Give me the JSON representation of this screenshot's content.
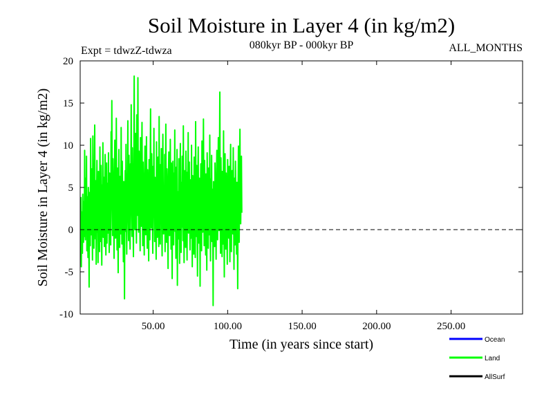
{
  "chart_data": {
    "type": "line",
    "title": "Soil Moisture in Layer 4 (in kg/m2)",
    "subtitle": "080kyr BP - 000kyr BP",
    "experiment": "Expt = tdwzZ-tdwza",
    "season": "ALL_MONTHS",
    "xlabel": "Time (in years since start)",
    "ylabel": "Soil Moisture in Layer 4 (in kg/m2)",
    "xlim": [
      1,
      298
    ],
    "ylim": [
      -10,
      20
    ],
    "x_ticks": [
      50,
      100,
      150,
      200,
      250
    ],
    "x_tick_labels": [
      "50.00",
      "100.00",
      "150.00",
      "200.00",
      "250.00"
    ],
    "y_ticks": [
      -10,
      -5,
      0,
      5,
      10,
      15,
      20
    ],
    "y_tick_labels": [
      "-10",
      "-5",
      "0",
      "5",
      "10",
      "15",
      "20"
    ],
    "reference_line": {
      "y": 0,
      "style": "dashed"
    },
    "grid": false,
    "legend_position": "bottom-right",
    "series": [
      {
        "name": "Land",
        "color": "#00ff00",
        "sample_step_years": 0.25,
        "values": [
          1.2,
          -3.1,
          3.8,
          -4.4,
          2.1,
          0.5,
          -2.8,
          4.2,
          1.0,
          -1.5,
          3.3,
          -0.8,
          9.4,
          2.0,
          -1.2,
          6.1,
          0.4,
          8.7,
          -2.5,
          3.9,
          1.7,
          -3.3,
          5.0,
          0.2,
          -6.8,
          4.4,
          2.6,
          -1.9,
          10.8,
          3.1,
          -0.6,
          7.2,
          1.5,
          -3.6,
          11.1,
          4.0,
          0.8,
          -2.2,
          6.5,
          12.4,
          2.3,
          -1.1,
          5.8,
          -4.1,
          3.0,
          8.2,
          -0.3,
          1.9,
          -3.9,
          6.9,
          4.6,
          0.1,
          -2.6,
          9.8,
          3.5,
          -1.4,
          7.6,
          2.2,
          -4.2,
          5.3,
          1.1,
          10.3,
          -0.9,
          3.7,
          6.2,
          -2.0,
          4.9,
          8.9,
          0.6,
          -3.0,
          2.8,
          7.9,
          -1.6,
          5.5,
          3.2,
          -0.4,
          9.1,
          1.4,
          -2.7,
          6.7,
          4.1,
          0.9,
          -1.8,
          11.6,
          3.6,
          15.3,
          2.5,
          -0.7,
          8.4,
          4.8,
          1.3,
          -3.4,
          6.0,
          10.6,
          2.9,
          -1.0,
          5.1,
          13.2,
          3.4,
          -2.4,
          7.3,
          1.8,
          -5.1,
          4.3,
          9.5,
          0.3,
          -2.1,
          6.3,
          3.9,
          -0.5,
          12.1,
          2.7,
          -1.7,
          8.1,
          4.5,
          0.7,
          -3.8,
          5.7,
          1.6,
          -8.2,
          3.1,
          7.0,
          -0.2,
          10.1,
          2.4,
          -2.9,
          6.6,
          4.0,
          12.9,
          1.2,
          -1.3,
          8.8,
          3.8,
          0.5,
          -2.3,
          7.8,
          5.4,
          14.8,
          2.1,
          -0.8,
          9.7,
          4.7,
          1.0,
          -3.2,
          6.8,
          18.2,
          3.3,
          0.0,
          8.5,
          11.4,
          2.6,
          -1.6,
          13.6,
          5.9,
          1.7,
          18.0,
          4.2,
          -0.3,
          9.3,
          6.4,
          2.0,
          -2.5,
          10.9,
          3.7,
          0.4,
          7.4,
          12.7,
          2.3,
          -1.9,
          8.0,
          4.9,
          1.1,
          -3.0,
          6.1,
          9.9,
          2.8,
          -0.6,
          5.2,
          11.0,
          3.0,
          -2.2,
          7.1,
          4.4,
          0.8,
          -3.7,
          8.3,
          2.5,
          -1.2,
          6.9,
          14.3,
          3.5,
          0.2,
          9.0,
          5.6,
          1.4,
          -2.8,
          7.5,
          3.2,
          12.0,
          1.9,
          -1.4,
          6.2,
          4.6,
          0.6,
          -3.5,
          10.4,
          2.2,
          -0.9,
          5.8,
          8.6,
          3.4,
          -2.0,
          13.4,
          4.1,
          1.3,
          -1.7,
          7.7,
          2.9,
          9.6,
          0.4,
          -3.1,
          6.0,
          11.3,
          3.6,
          -0.5,
          5.0,
          1.5,
          8.9,
          -2.6,
          4.3,
          12.5,
          2.0,
          -1.5,
          7.2,
          3.8,
          0.1,
          -4.6,
          6.5,
          9.2,
          2.4,
          -0.7,
          5.3,
          10.7,
          3.1,
          -2.3,
          7.9,
          1.6,
          -5.8,
          4.8,
          8.1,
          0.9,
          -1.8,
          6.7,
          2.7,
          11.8,
          -0.2,
          3.9,
          -3.4,
          7.4,
          1.2,
          9.5,
          -6.6,
          4.5,
          2.1,
          -1.1,
          8.4,
          3.3,
          -4.0,
          6.3,
          10.2,
          1.8,
          -2.7,
          5.6,
          0.3,
          8.7,
          3.5,
          -1.3,
          12.3,
          2.6,
          -3.9,
          7.0,
          4.2,
          0.7,
          -2.1,
          9.3,
          5.1,
          1.0,
          -3.6,
          6.8,
          2.3,
          11.5,
          -0.4,
          4.0,
          8.0,
          1.7,
          -2.4,
          5.9,
          3.0,
          -1.0,
          10.0,
          2.5,
          -4.4,
          6.4,
          3.7,
          0.5,
          -2.9,
          8.6,
          4.7,
          1.4,
          -3.3,
          12.8,
          3.2,
          -0.8,
          7.6,
          2.8,
          -5.5,
          5.5,
          9.8,
          0.8,
          -1.6,
          6.1,
          3.6,
          -6.7,
          4.1,
          7.8,
          1.1,
          -2.5,
          10.5,
          2.4,
          -0.3,
          5.2,
          13.1,
          3.4,
          -1.9,
          8.2,
          4.6,
          0.2,
          -3.0,
          6.6,
          2.9,
          -4.8,
          9.1,
          3.9,
          1.5,
          -2.2,
          7.3,
          4.3,
          -0.6,
          11.2,
          2.2,
          -3.7,
          6.0,
          1.3,
          8.8,
          -1.4,
          4.8,
          2.7,
          -9.0,
          5.7,
          3.1,
          0.4,
          -2.0,
          7.9,
          4.4,
          1.6,
          -3.5,
          6.2,
          9.4,
          2.0,
          -1.2,
          5.4,
          10.9,
          3.5,
          -0.1,
          7.1,
          16.3,
          2.6,
          -2.8,
          8.5,
          4.9,
          0.9,
          -3.2,
          6.9,
          3.8,
          -1.7,
          11.7,
          2.1,
          -5.6,
          5.3,
          9.0,
          1.8,
          -2.3,
          6.7,
          3.3,
          0.0,
          -4.1,
          8.3,
          4.5,
          1.2,
          -1.0,
          7.5,
          2.8,
          -3.8,
          5.9,
          10.1,
          0.6,
          -2.6,
          4.2,
          7.0,
          1.9,
          -0.5,
          9.7,
          3.0,
          -4.7,
          6.1,
          2.5,
          -1.8,
          8.1,
          3.6,
          0.3,
          -2.9,
          5.6,
          1.0,
          -7.0,
          4.6,
          9.9,
          2.3,
          -1.5,
          6.4,
          11.9,
          3.2,
          0.7,
          5.0,
          8.7,
          2.0
        ]
      },
      {
        "name": "Ocean",
        "color": "#0000ff",
        "values": []
      },
      {
        "name": "AllSurf",
        "color": "#000000",
        "values": []
      }
    ],
    "legend": [
      {
        "label": "Ocean",
        "color": "#0000ff"
      },
      {
        "label": "Land",
        "color": "#00ff00"
      },
      {
        "label": "AllSurf",
        "color": "#000000"
      }
    ]
  }
}
